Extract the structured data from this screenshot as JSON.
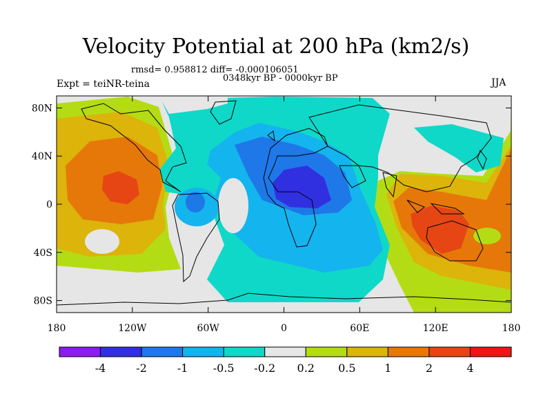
{
  "figure": {
    "title": "Velocity Potential at 200 hPa (km2/s)",
    "stats": "rmsd= 0.958812 diff= -0.000106051",
    "period": "0348kyr BP - 0000kyr BP",
    "experiment": "Expt = teiNR-teina",
    "season": "JJA"
  },
  "map": {
    "projection": "cylindrical equidistant",
    "lat_ticks": [
      {
        "value": 80,
        "label": "80N"
      },
      {
        "value": 40,
        "label": "40N"
      },
      {
        "value": 0,
        "label": "0"
      },
      {
        "value": -40,
        "label": "40S"
      },
      {
        "value": -80,
        "label": "80S"
      }
    ],
    "lon_ticks": [
      {
        "value": -180,
        "label": "180"
      },
      {
        "value": -120,
        "label": "120W"
      },
      {
        "value": -60,
        "label": "60W"
      },
      {
        "value": 0,
        "label": "0"
      },
      {
        "value": 60,
        "label": "60E"
      },
      {
        "value": 120,
        "label": "120E"
      },
      {
        "value": 180,
        "label": "180"
      }
    ]
  },
  "colorbar": {
    "colors": [
      "#8a1cf0",
      "#3030e0",
      "#1e78e8",
      "#14b4ee",
      "#10d8c8",
      "#e6e6e6",
      "#b4dc14",
      "#dcb40a",
      "#e6780a",
      "#e64614",
      "#f01414"
    ],
    "labels": [
      "-4",
      "-2",
      "-1",
      "-0.5",
      "-0.2",
      "0.2",
      "0.5",
      "1",
      "2",
      "4"
    ]
  }
}
